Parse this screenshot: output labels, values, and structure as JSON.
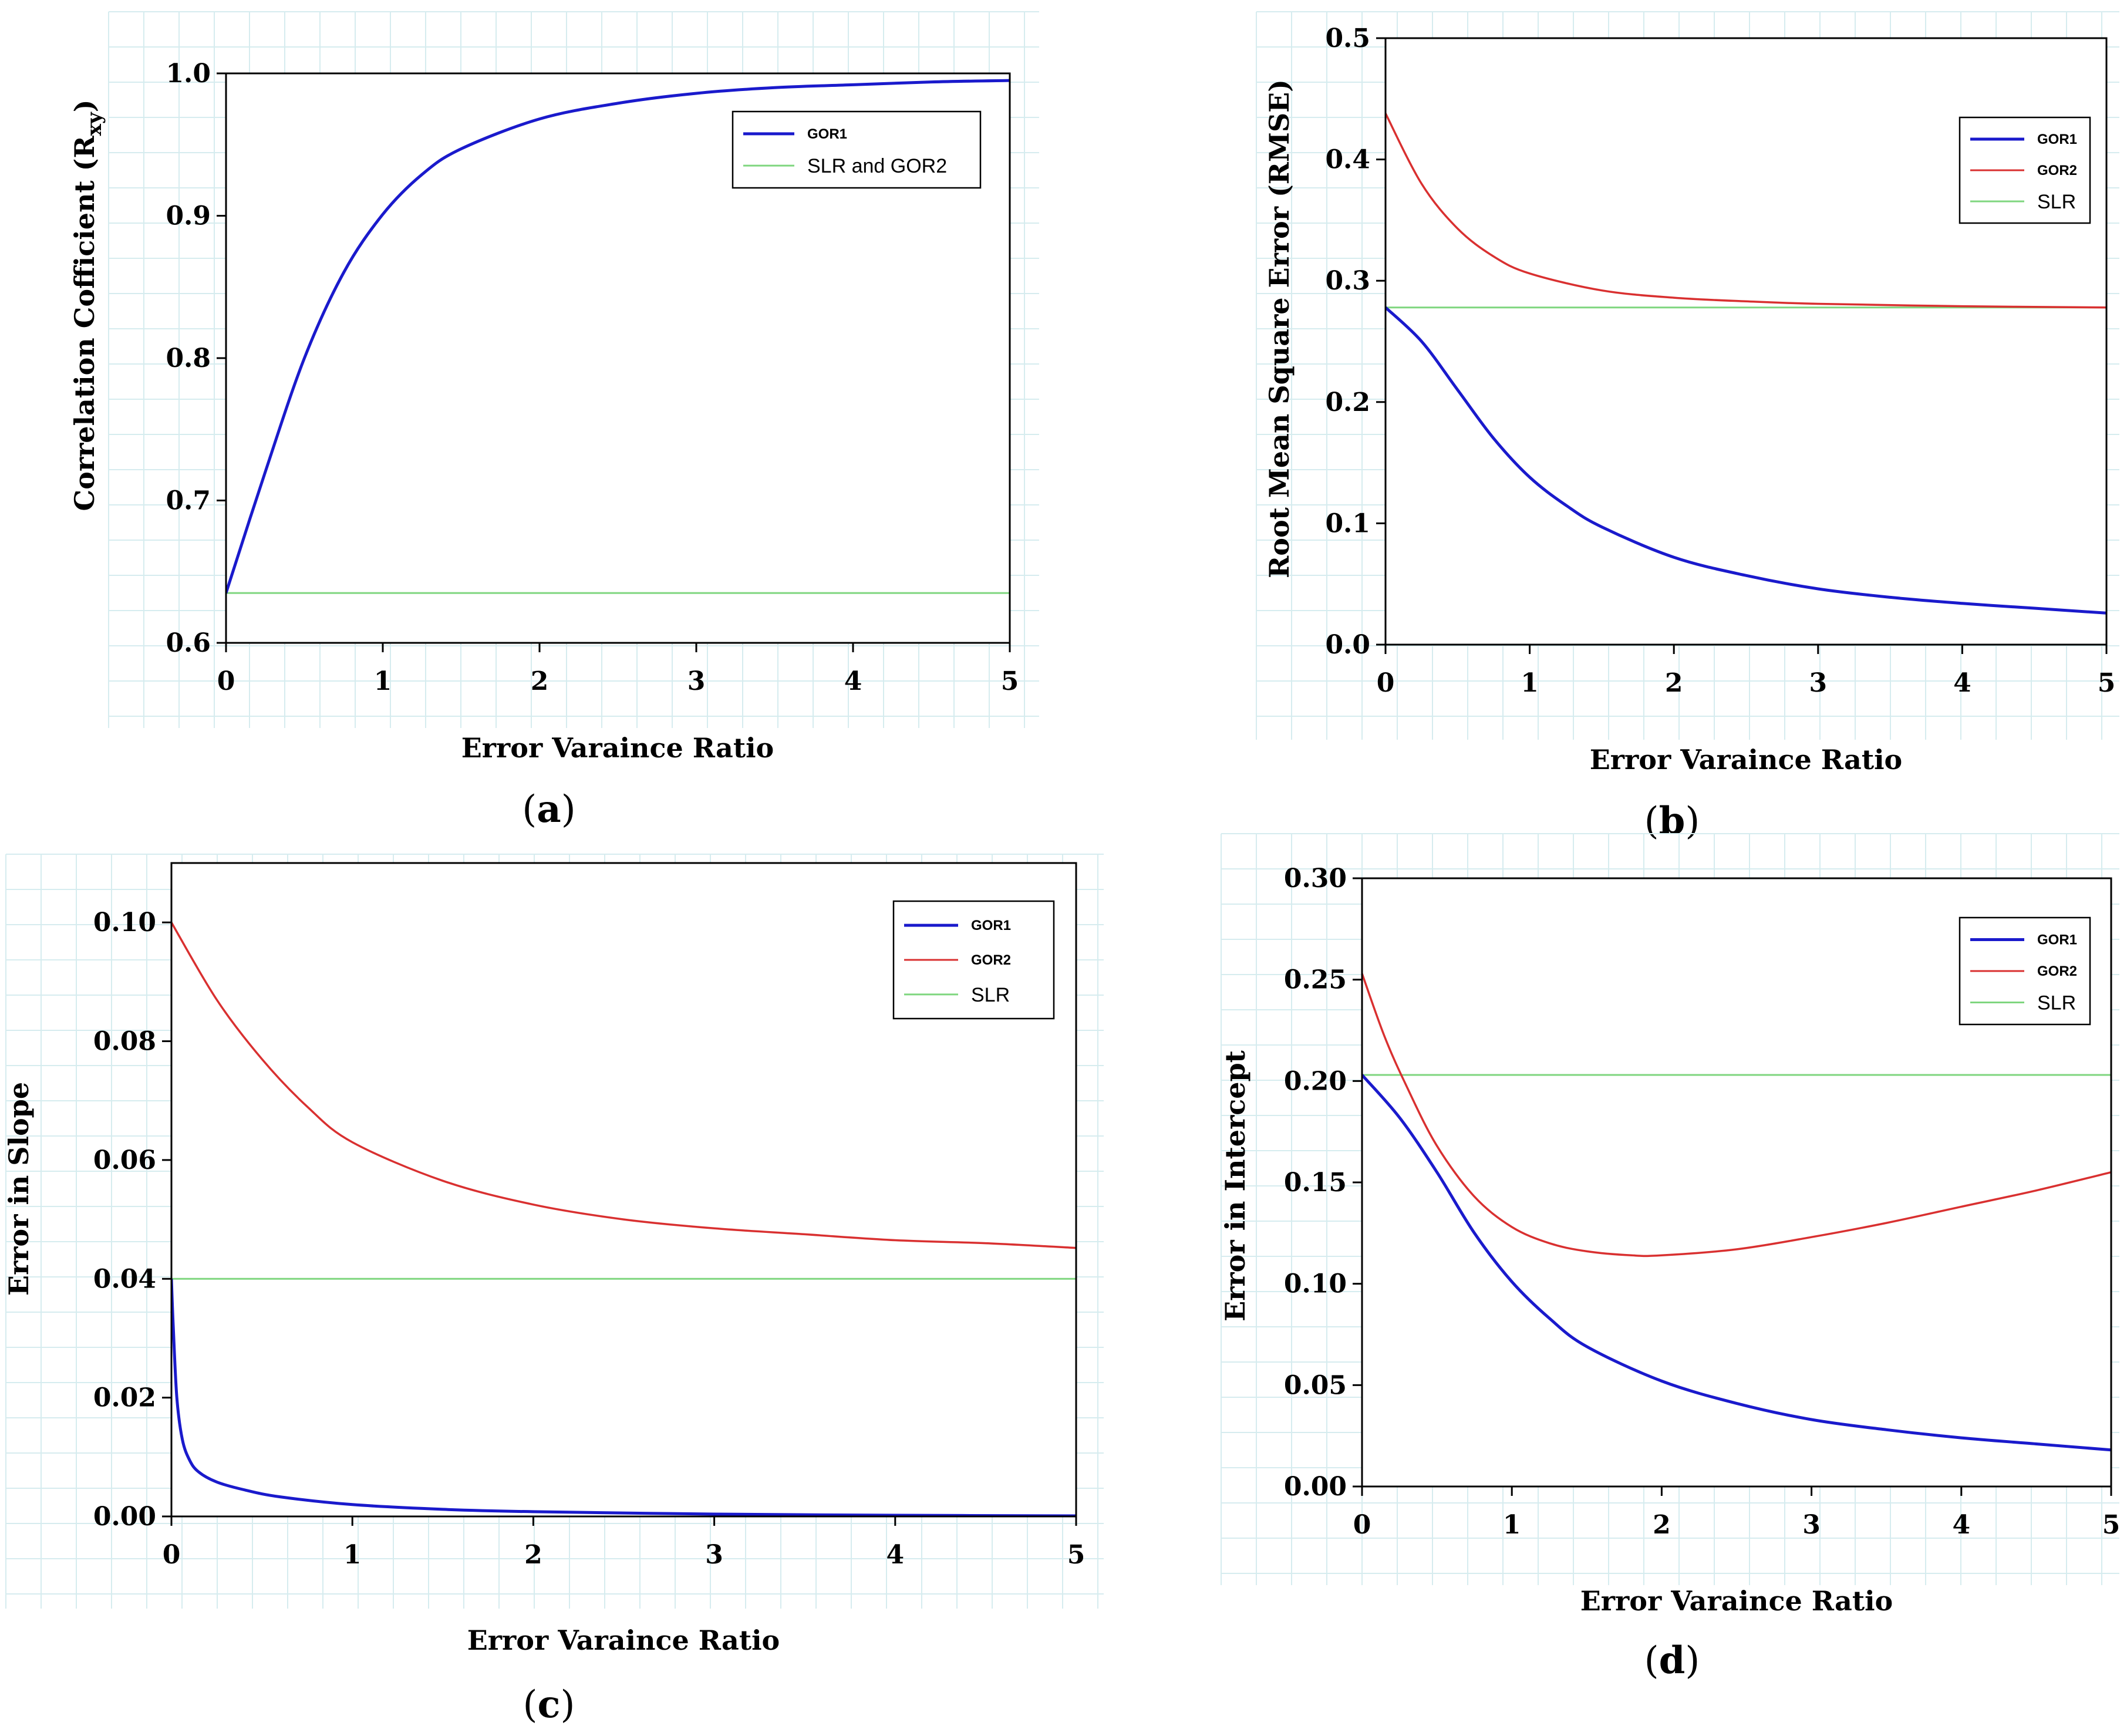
{
  "chart_data": [
    {
      "id": "a",
      "type": "line",
      "panel_label": "a",
      "xlabel": "Error Varaince Ratio",
      "ylabel": "Correlation Cofficient (R",
      "ylabel_sub": "xy",
      "ylabel_close": ")",
      "xlim": [
        0,
        5
      ],
      "ylim": [
        0.6,
        1.0
      ],
      "xticks": [
        0,
        1,
        2,
        3,
        4,
        5
      ],
      "xtick_labels": [
        "0",
        "1",
        "2",
        "3",
        "4",
        "5"
      ],
      "yticks": [
        0.6,
        0.7,
        0.8,
        0.9,
        1.0
      ],
      "ytick_labels": [
        "0.6",
        "0.7",
        "0.8",
        "0.9",
        "1.0"
      ],
      "legend_position": "top-right",
      "series": [
        {
          "name": "GOR1",
          "legend_style": "small",
          "color": "#1a1acc",
          "x": [
            0,
            0.25,
            0.5,
            0.75,
            1.0,
            1.25,
            1.5,
            2.0,
            2.5,
            3.0,
            3.5,
            4.0,
            4.5,
            5.0
          ],
          "y": [
            0.635,
            0.72,
            0.8,
            0.86,
            0.901,
            0.929,
            0.947,
            0.968,
            0.979,
            0.986,
            0.99,
            0.992,
            0.994,
            0.995
          ]
        },
        {
          "name": "SLR and GOR2",
          "legend_style": "normal",
          "color": "#7fd67f",
          "x": [
            0,
            5
          ],
          "y": [
            0.635,
            0.635
          ]
        }
      ]
    },
    {
      "id": "b",
      "type": "line",
      "panel_label": "b",
      "xlabel": "Error Varaince Ratio",
      "ylabel": "Root Mean Square Error (RMSE)",
      "xlim": [
        0,
        5
      ],
      "ylim": [
        0.0,
        0.5
      ],
      "xticks": [
        0,
        1,
        2,
        3,
        4,
        5
      ],
      "xtick_labels": [
        "0",
        "1",
        "2",
        "3",
        "4",
        "5"
      ],
      "yticks": [
        0.0,
        0.1,
        0.2,
        0.3,
        0.4,
        0.5
      ],
      "ytick_labels": [
        "0.0",
        "0.1",
        "0.2",
        "0.3",
        "0.4",
        "0.5"
      ],
      "legend_position": "top-right",
      "series": [
        {
          "name": "GOR1",
          "legend_style": "small",
          "color": "#1a1acc",
          "x": [
            0,
            0.25,
            0.5,
            0.75,
            1.0,
            1.25,
            1.5,
            2.0,
            2.5,
            3.0,
            3.5,
            4.0,
            4.5,
            5.0
          ],
          "y": [
            0.278,
            0.25,
            0.21,
            0.17,
            0.138,
            0.115,
            0.097,
            0.072,
            0.057,
            0.046,
            0.039,
            0.034,
            0.03,
            0.026
          ]
        },
        {
          "name": "GOR2",
          "legend_style": "small",
          "color": "#d93030",
          "x": [
            0,
            0.25,
            0.5,
            0.75,
            1.0,
            1.5,
            2.0,
            2.5,
            3.0,
            4.0,
            5.0
          ],
          "y": [
            0.438,
            0.38,
            0.343,
            0.32,
            0.306,
            0.292,
            0.286,
            0.283,
            0.281,
            0.279,
            0.278
          ]
        },
        {
          "name": "SLR",
          "legend_style": "normal",
          "color": "#7fd67f",
          "x": [
            0,
            5
          ],
          "y": [
            0.278,
            0.278
          ]
        }
      ]
    },
    {
      "id": "c",
      "type": "line",
      "panel_label": "c",
      "xlabel": "Error Varaince Ratio",
      "ylabel": "Error in Slope",
      "xlim": [
        0,
        5
      ],
      "ylim": [
        0.0,
        0.11
      ],
      "xticks": [
        0,
        1,
        2,
        3,
        4,
        5
      ],
      "xtick_labels": [
        "0",
        "1",
        "2",
        "3",
        "4",
        "5"
      ],
      "yticks": [
        0.0,
        0.02,
        0.04,
        0.06,
        0.08,
        0.1
      ],
      "ytick_labels": [
        "0.00",
        "0.02",
        "0.04",
        "0.06",
        "0.08",
        "0.10"
      ],
      "legend_position": "top-right",
      "series": [
        {
          "name": "GOR1",
          "legend_style": "small",
          "color": "#1a1acc",
          "x": [
            0,
            0.01,
            0.03,
            0.06,
            0.1,
            0.15,
            0.25,
            0.4,
            0.6,
            1.0,
            1.5,
            2.0,
            3.0,
            4.0,
            5.0
          ],
          "y": [
            0.04,
            0.032,
            0.02,
            0.013,
            0.0095,
            0.0075,
            0.0058,
            0.0045,
            0.0033,
            0.002,
            0.0012,
            0.0008,
            0.0004,
            0.0002,
            0.0001
          ]
        },
        {
          "name": "GOR2",
          "legend_style": "small",
          "color": "#d93030",
          "x": [
            0,
            0.25,
            0.5,
            0.75,
            1.0,
            1.5,
            2.0,
            2.5,
            3.0,
            3.5,
            4.0,
            4.5,
            5.0
          ],
          "y": [
            0.1,
            0.087,
            0.077,
            0.069,
            0.063,
            0.0565,
            0.0525,
            0.05,
            0.0485,
            0.0475,
            0.0465,
            0.046,
            0.0452
          ]
        },
        {
          "name": "SLR",
          "legend_style": "normal",
          "color": "#7fd67f",
          "x": [
            0,
            5
          ],
          "y": [
            0.04,
            0.04
          ]
        }
      ]
    },
    {
      "id": "d",
      "type": "line",
      "panel_label": "d",
      "xlabel": "Error Varaince Ratio",
      "ylabel": "Error in Intercept",
      "xlim": [
        0,
        5
      ],
      "ylim": [
        0.0,
        0.3
      ],
      "xticks": [
        0,
        1,
        2,
        3,
        4,
        5
      ],
      "xtick_labels": [
        "0",
        "1",
        "2",
        "3",
        "4",
        "5"
      ],
      "yticks": [
        0.0,
        0.05,
        0.1,
        0.15,
        0.2,
        0.25,
        0.3
      ],
      "ytick_labels": [
        "0.00",
        "0.05",
        "0.10",
        "0.15",
        "0.20",
        "0.25",
        "0.30"
      ],
      "legend_position": "top-right",
      "series": [
        {
          "name": "GOR1",
          "legend_style": "small",
          "color": "#1a1acc",
          "x": [
            0,
            0.25,
            0.5,
            0.75,
            1.0,
            1.25,
            1.5,
            2.0,
            2.5,
            3.0,
            3.5,
            4.0,
            4.5,
            5.0
          ],
          "y": [
            0.203,
            0.182,
            0.155,
            0.125,
            0.101,
            0.083,
            0.069,
            0.052,
            0.041,
            0.033,
            0.028,
            0.024,
            0.021,
            0.018
          ]
        },
        {
          "name": "GOR2",
          "legend_style": "small",
          "color": "#d93030",
          "x": [
            0,
            0.15,
            0.3,
            0.5,
            0.75,
            1.0,
            1.25,
            1.5,
            1.8,
            2.0,
            2.5,
            3.0,
            3.5,
            4.0,
            4.5,
            5.0
          ],
          "y": [
            0.253,
            0.222,
            0.197,
            0.168,
            0.143,
            0.128,
            0.12,
            0.116,
            0.114,
            0.114,
            0.117,
            0.123,
            0.13,
            0.138,
            0.146,
            0.155
          ]
        },
        {
          "name": "SLR",
          "legend_style": "normal",
          "color": "#7fd67f",
          "x": [
            0,
            5
          ],
          "y": [
            0.203,
            0.203
          ]
        }
      ]
    }
  ]
}
